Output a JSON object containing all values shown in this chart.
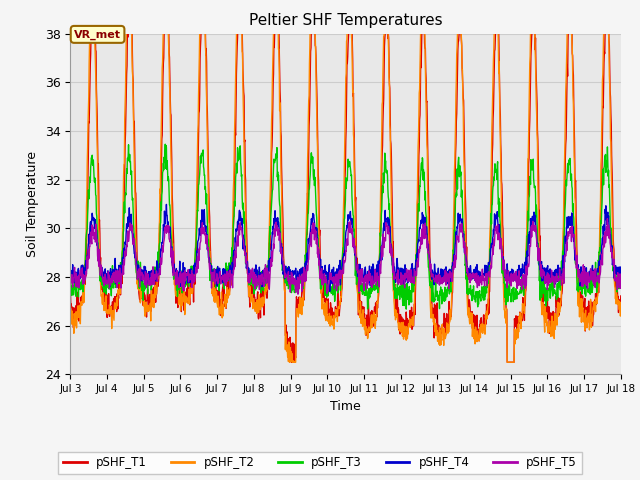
{
  "title": "Peltier SHF Temperatures",
  "xlabel": "Time",
  "ylabel": "Soil Temperature",
  "ylim": [
    24,
    38
  ],
  "xlim_days": [
    3,
    18
  ],
  "plot_bg_color": "#e8e8e8",
  "fig_bg_color": "#f5f5f5",
  "grid_color": "#d0d0d0",
  "series_names": [
    "pSHF_T1",
    "pSHF_T2",
    "pSHF_T3",
    "pSHF_T4",
    "pSHF_T5"
  ],
  "series_colors": [
    "#dd0000",
    "#ff8800",
    "#00cc00",
    "#0000cc",
    "#aa00aa"
  ],
  "line_width": 1.0,
  "annotation_text": "VR_met",
  "tick_days": [
    3,
    4,
    5,
    6,
    7,
    8,
    9,
    10,
    11,
    12,
    13,
    14,
    15,
    16,
    17,
    18
  ],
  "tick_labels": [
    "Jul 3",
    "Jul 4",
    "Jul 5",
    "Jul 6",
    "Jul 7",
    "Jul 8",
    "Jul 9",
    "Jul 10",
    "Jul 11",
    "Jul 12",
    "Jul 13",
    "Jul 14",
    "Jul 15",
    "Jul 16",
    "Jul 17",
    "Jul 18"
  ],
  "yticks": [
    24,
    26,
    28,
    30,
    32,
    34,
    36,
    38
  ]
}
